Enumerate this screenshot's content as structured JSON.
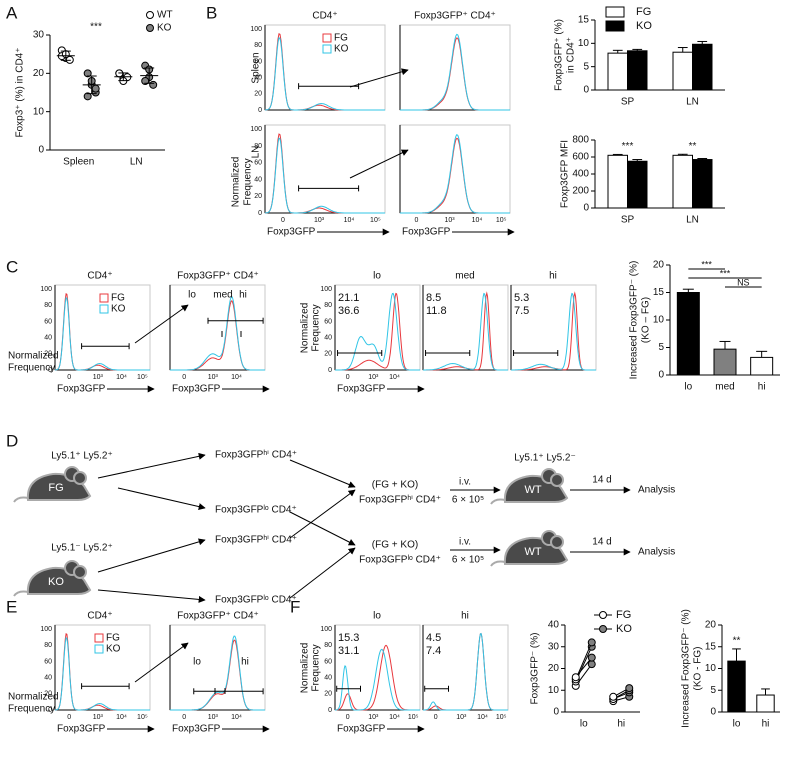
{
  "letters": [
    "A",
    "B",
    "C",
    "D",
    "E",
    "F"
  ],
  "flow": {
    "cd4": "CD4⁺",
    "gfp_cd4": "Foxp3GFP⁺ CD4⁺",
    "fg": "FG",
    "ko": "KO",
    "spleen": "Spleen",
    "ln": "LN",
    "norm": [
      "Normalized",
      "Frequency"
    ],
    "xlabel": "Foxp3GFP",
    "xticks": [
      "0",
      "10³",
      "10⁴",
      "10⁵"
    ],
    "xticks2": [
      "0",
      "10³",
      "10⁴"
    ],
    "yticks": [
      "0",
      "20",
      "40",
      "60",
      "80",
      "100"
    ],
    "lo": "lo",
    "med": "med",
    "hi": "hi",
    "c_values": [
      [
        "21.1",
        "36.6"
      ],
      [
        "8.5",
        "11.8"
      ],
      [
        "5.3",
        "7.5"
      ]
    ],
    "f_values": [
      [
        "15.3",
        "31.1"
      ],
      [
        "4.5",
        "7.4"
      ]
    ]
  },
  "diagram": {
    "donor_fg": "Ly5.1⁺ Ly5.2⁺",
    "donor_ko": "Ly5.1⁻ Ly5.2⁺",
    "recipient": "Ly5.1⁺ Ly5.2⁻",
    "fg": "FG",
    "ko": "KO",
    "wt": "WT",
    "cells": [
      "Foxp3GFPʰⁱ CD4⁺",
      "Foxp3GFPˡᵒ CD4⁺",
      "Foxp3GFPʰⁱ CD4⁺",
      "Foxp3GFPˡᵒ CD4⁺"
    ],
    "mix": "(FG + KO)",
    "pool_hi": "Foxp3GFPʰⁱ CD4⁺",
    "pool_lo": "Foxp3GFPˡᵒ CD4⁺",
    "route": "i.v.",
    "dose": "6 × 10⁵",
    "time": "14 d",
    "analysis": "Analysis"
  },
  "chart_data": [
    {
      "type": "dot",
      "ylabel": [
        "Foxp3⁺ (%) in CD4⁺"
      ],
      "categories": [
        "Spleen",
        "LN"
      ],
      "ylim": [
        0,
        30
      ],
      "yticks": [
        0,
        10,
        20,
        30
      ],
      "series": [
        {
          "name": "WT",
          "color": "#ffffff",
          "values": [
            24.6,
            19.1
          ],
          "errors": [
            1.2,
            1.0
          ],
          "points": [
            [
              26,
              24,
              23.5,
              24.5,
              25
            ],
            [
              20,
              18.5,
              19,
              20,
              18
            ]
          ]
        },
        {
          "name": "KO",
          "color": "#808080",
          "values": [
            17,
            19.4
          ],
          "errors": [
            2.3,
            2.0
          ],
          "points": [
            [
              20,
              17,
              15,
              14,
              18,
              16
            ],
            [
              22,
              19,
              17,
              18,
              21
            ]
          ]
        }
      ],
      "annotations": [
        {
          "text": "***",
          "category": 0
        }
      ]
    },
    {
      "type": "bar",
      "ylabel": [
        "Foxp3GFP⁺ (%)",
        "in CD4⁺"
      ],
      "categories": [
        "SP",
        "LN"
      ],
      "ylim": [
        0,
        15
      ],
      "yticks": [
        0,
        5,
        10,
        15
      ],
      "series": [
        {
          "name": "FG",
          "color": "#ffffff",
          "values": [
            7.9,
            8.1
          ],
          "errors": [
            0.6,
            1.0
          ]
        },
        {
          "name": "KO",
          "color": "#000000",
          "values": [
            8.4,
            9.8
          ],
          "errors": [
            0.3,
            0.6
          ]
        }
      ]
    },
    {
      "type": "bar",
      "ylabel": [
        "Foxp3GFP MFI"
      ],
      "categories": [
        "SP",
        "LN"
      ],
      "ylim": [
        0,
        800
      ],
      "yticks": [
        0,
        200,
        400,
        600,
        800
      ],
      "series": [
        {
          "color": "#ffffff",
          "values": [
            620,
            620
          ],
          "errors": [
            10,
            12
          ]
        },
        {
          "color": "#000000",
          "values": [
            550,
            570
          ],
          "errors": [
            20,
            12
          ]
        }
      ],
      "annotations": [
        {
          "text": "***",
          "category": 0
        },
        {
          "text": "**",
          "category": 1
        }
      ]
    },
    {
      "type": "bar",
      "ylabel": [
        "Increased Foxp3GFP⁻ (%)",
        "(KO – FG)"
      ],
      "categories": [
        "lo",
        "med",
        "hi"
      ],
      "ylim": [
        0,
        20
      ],
      "yticks": [
        0,
        5,
        10,
        15,
        20
      ],
      "series": [
        {
          "colors": [
            "#000000",
            "#808080",
            "#ffffff"
          ],
          "values": [
            15,
            4.7,
            3.2
          ],
          "errors": [
            0.6,
            1.4,
            1.1
          ]
        }
      ],
      "annotations": [
        {
          "text": "***",
          "from": 0,
          "to": 1
        },
        {
          "text": "***",
          "from": 0,
          "to": 2
        },
        {
          "text": "NS",
          "from": 1,
          "to": 2
        }
      ]
    },
    {
      "type": "paired",
      "ylabel": [
        "Foxp3GFP⁻ (%)"
      ],
      "categories": [
        "lo",
        "hi"
      ],
      "ylim": [
        0,
        40
      ],
      "yticks": [
        0,
        10,
        20,
        30,
        40
      ],
      "series": [
        {
          "name": "FG",
          "color": "#ffffff",
          "values": [
            [
              12,
              14,
              15,
              16
            ],
            [
              5,
              6,
              6,
              7
            ]
          ]
        },
        {
          "name": "KO",
          "color": "#808080",
          "values": [
            [
              22,
              30,
              32,
              25
            ],
            [
              7,
              9,
              10,
              11
            ]
          ]
        }
      ]
    },
    {
      "type": "bar",
      "ylabel": [
        "Increased Foxp3GFP⁻ (%)",
        "(KO - FG)"
      ],
      "categories": [
        "lo",
        "hi"
      ],
      "ylim": [
        0,
        20
      ],
      "yticks": [
        0,
        5,
        10,
        15,
        20
      ],
      "series": [
        {
          "colors": [
            "#000000",
            "#ffffff"
          ],
          "values": [
            11.7,
            3.9
          ],
          "errors": [
            2.8,
            1.4
          ]
        }
      ],
      "annotations": [
        {
          "text": "**",
          "category": 0
        }
      ]
    }
  ]
}
